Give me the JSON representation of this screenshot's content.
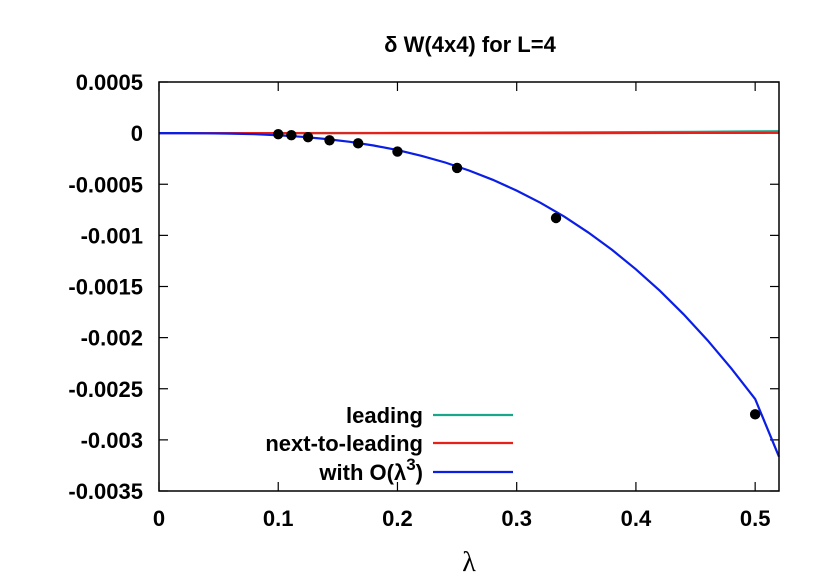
{
  "chart_data": {
    "type": "line",
    "title": "δ W(4x4) for L=4",
    "xlabel": "λ",
    "ylabel": "",
    "xlim": [
      0,
      0.52
    ],
    "ylim": [
      -0.0035,
      0.0005
    ],
    "x_ticks": [
      {
        "value": 0,
        "label": "0"
      },
      {
        "value": 0.1,
        "label": "0.1"
      },
      {
        "value": 0.2,
        "label": "0.2"
      },
      {
        "value": 0.3,
        "label": "0.3"
      },
      {
        "value": 0.4,
        "label": "0.4"
      },
      {
        "value": 0.5,
        "label": "0.5"
      }
    ],
    "y_ticks": [
      {
        "value": 0.0005,
        "label": "0.0005"
      },
      {
        "value": 0,
        "label": "0"
      },
      {
        "value": -0.0005,
        "label": "-0.0005"
      },
      {
        "value": -0.001,
        "label": "-0.001"
      },
      {
        "value": -0.0015,
        "label": "-0.0015"
      },
      {
        "value": -0.002,
        "label": "-0.002"
      },
      {
        "value": -0.0025,
        "label": "-0.0025"
      },
      {
        "value": -0.003,
        "label": "-0.003"
      },
      {
        "value": -0.0035,
        "label": "-0.0035"
      }
    ],
    "series": [
      {
        "name": "leading",
        "color": "#1aa68a",
        "x": [
          0,
          0.05,
          0.1,
          0.15,
          0.2,
          0.25,
          0.3,
          0.35,
          0.4,
          0.45,
          0.5,
          0.52
        ],
        "y": [
          0,
          1e-07,
          5e-07,
          1e-06,
          2e-06,
          3e-06,
          5e-06,
          7e-06,
          1e-05,
          1.3e-05,
          1.7e-05,
          1.9e-05
        ]
      },
      {
        "name": "next-to-leading",
        "color": "#e8201a",
        "x": [
          0,
          0.05,
          0.1,
          0.15,
          0.2,
          0.25,
          0.3,
          0.35,
          0.4,
          0.45,
          0.5,
          0.52
        ],
        "y": [
          0,
          -1e-07,
          -2e-07,
          -3e-07,
          -2e-07,
          0,
          3e-07,
          7e-07,
          1.2e-06,
          1.8e-06,
          2.5e-06,
          2.8e-06
        ]
      },
      {
        "name": "with O(λ^3)",
        "legend_base": "with O(λ",
        "legend_sup": "3",
        "legend_close": ")",
        "color": "#0a1ee6",
        "x": [
          0,
          0.02,
          0.04,
          0.06,
          0.08,
          0.1,
          0.12,
          0.14,
          0.16,
          0.18,
          0.2,
          0.22,
          0.24,
          0.26,
          0.28,
          0.3,
          0.32,
          0.34,
          0.36,
          0.38,
          0.4,
          0.42,
          0.44,
          0.46,
          0.48,
          0.5,
          0.52
        ],
        "y": [
          0,
          -2e-07,
          -1.3e-06,
          -4.5e-06,
          -1.06e-05,
          -2.08e-05,
          -3.59e-05,
          -5.71e-05,
          -8.52e-05,
          -0.0001213,
          -0.0001664,
          -0.0002215,
          -0.0002876,
          -0.0003656,
          -0.0004567,
          -0.0005617,
          -0.0006817,
          -0.0008177,
          -0.0009706,
          -0.0011416,
          -0.0013315,
          -0.0015414,
          -0.0017723,
          -0.0020252,
          -0.0023011,
          -0.0026011,
          -0.003165
        ]
      }
    ],
    "points": {
      "color": "#000000",
      "x": [
        0.1,
        0.111,
        0.125,
        0.143,
        0.167,
        0.2,
        0.25,
        0.333,
        0.5
      ],
      "y": [
        -1e-05,
        -2e-05,
        -4e-05,
        -7e-05,
        -0.0001,
        -0.00018,
        -0.00034,
        -0.00083,
        -0.00275
      ]
    },
    "legend_position": "bottom-left",
    "grid": false
  }
}
